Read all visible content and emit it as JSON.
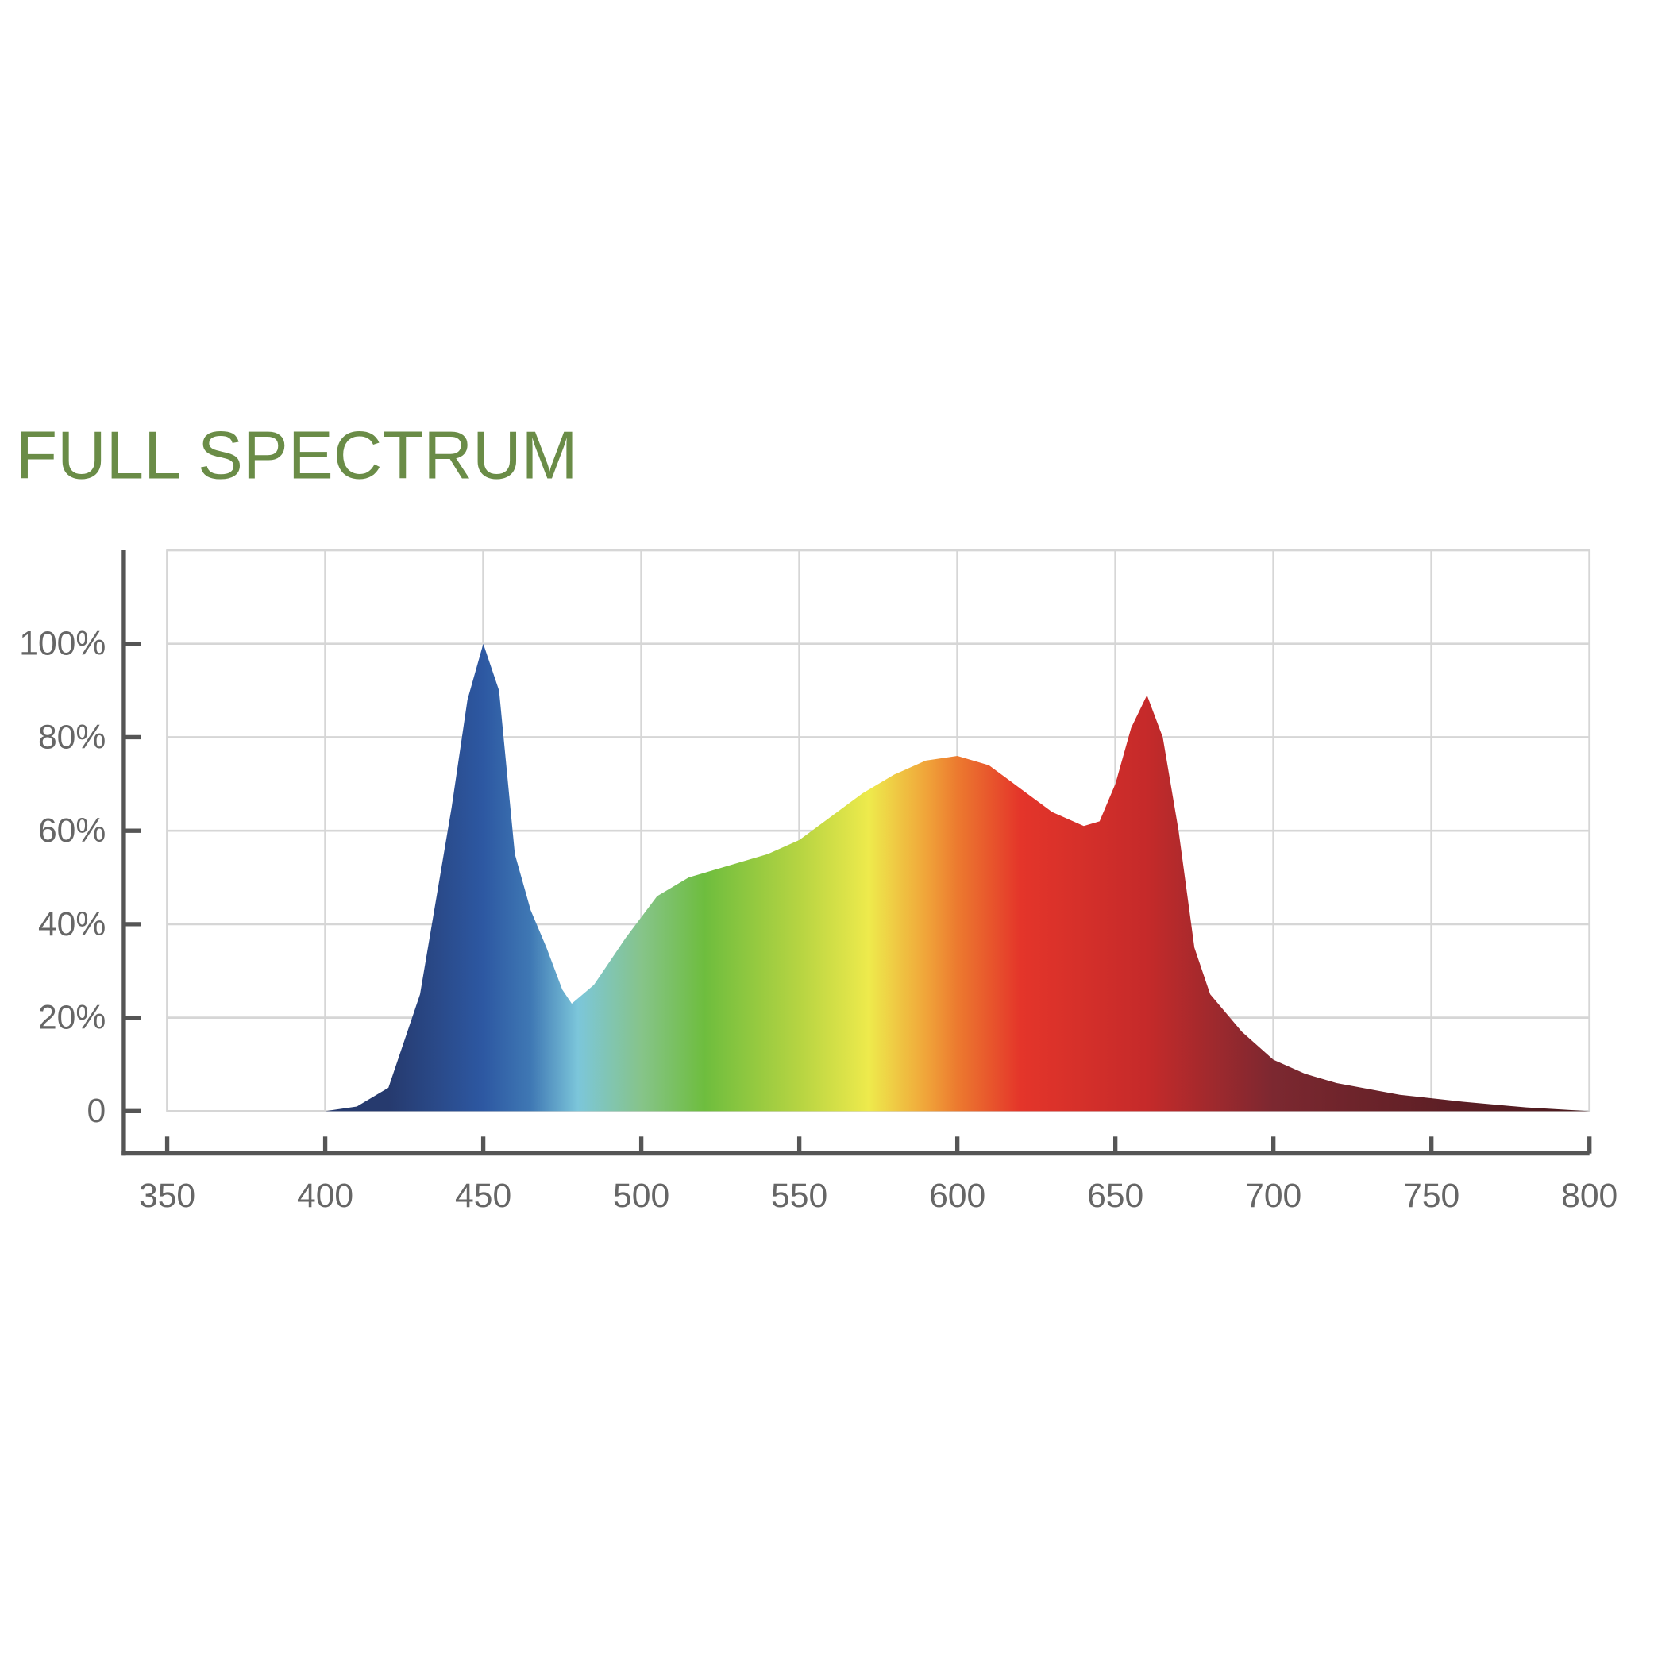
{
  "chart_data": {
    "type": "area",
    "title": "FULL SPECTRUM",
    "x": [
      400,
      410,
      420,
      430,
      440,
      445,
      450,
      455,
      460,
      465,
      470,
      475,
      478,
      485,
      495,
      505,
      515,
      525,
      540,
      550,
      560,
      570,
      580,
      590,
      600,
      610,
      620,
      630,
      640,
      645,
      650,
      655,
      660,
      665,
      670,
      675,
      680,
      690,
      700,
      710,
      720,
      740,
      760,
      780,
      800
    ],
    "values": [
      0,
      1,
      5,
      25,
      65,
      88,
      100,
      90,
      55,
      43,
      35,
      26,
      23,
      27,
      37,
      46,
      50,
      52,
      55,
      58,
      63,
      68,
      72,
      75,
      76,
      74,
      69,
      64,
      61,
      62,
      70,
      82,
      89,
      80,
      60,
      35,
      25,
      17,
      11,
      8,
      6,
      3.5,
      2,
      0.8,
      0
    ],
    "xlim": [
      350,
      800
    ],
    "xticks": [
      350,
      400,
      450,
      500,
      550,
      600,
      650,
      700,
      750,
      800
    ],
    "ylim": [
      0,
      120
    ],
    "yticks": [
      0,
      {
        "value": 20,
        "label": "20%"
      },
      {
        "value": 40,
        "label": "40%"
      },
      {
        "value": 60,
        "label": "60%"
      },
      {
        "value": 80,
        "label": "80%"
      },
      {
        "value": 100,
        "label": "100%"
      }
    ],
    "grid": true,
    "color_stops": [
      {
        "x": 420,
        "color": "#263a6e"
      },
      {
        "x": 450,
        "color": "#2d58a2"
      },
      {
        "x": 465,
        "color": "#3f78b4"
      },
      {
        "x": 480,
        "color": "#7cc6da"
      },
      {
        "x": 500,
        "color": "#86c48a"
      },
      {
        "x": 520,
        "color": "#6ebd3e"
      },
      {
        "x": 550,
        "color": "#b6d442"
      },
      {
        "x": 572,
        "color": "#eeea4c"
      },
      {
        "x": 590,
        "color": "#f0a53a"
      },
      {
        "x": 600,
        "color": "#ec7a2f"
      },
      {
        "x": 620,
        "color": "#e4352a"
      },
      {
        "x": 660,
        "color": "#c52a2a"
      },
      {
        "x": 700,
        "color": "#7c2830"
      },
      {
        "x": 760,
        "color": "#5a1e24"
      },
      {
        "x": 800,
        "color": "#4a1a1e"
      }
    ]
  }
}
